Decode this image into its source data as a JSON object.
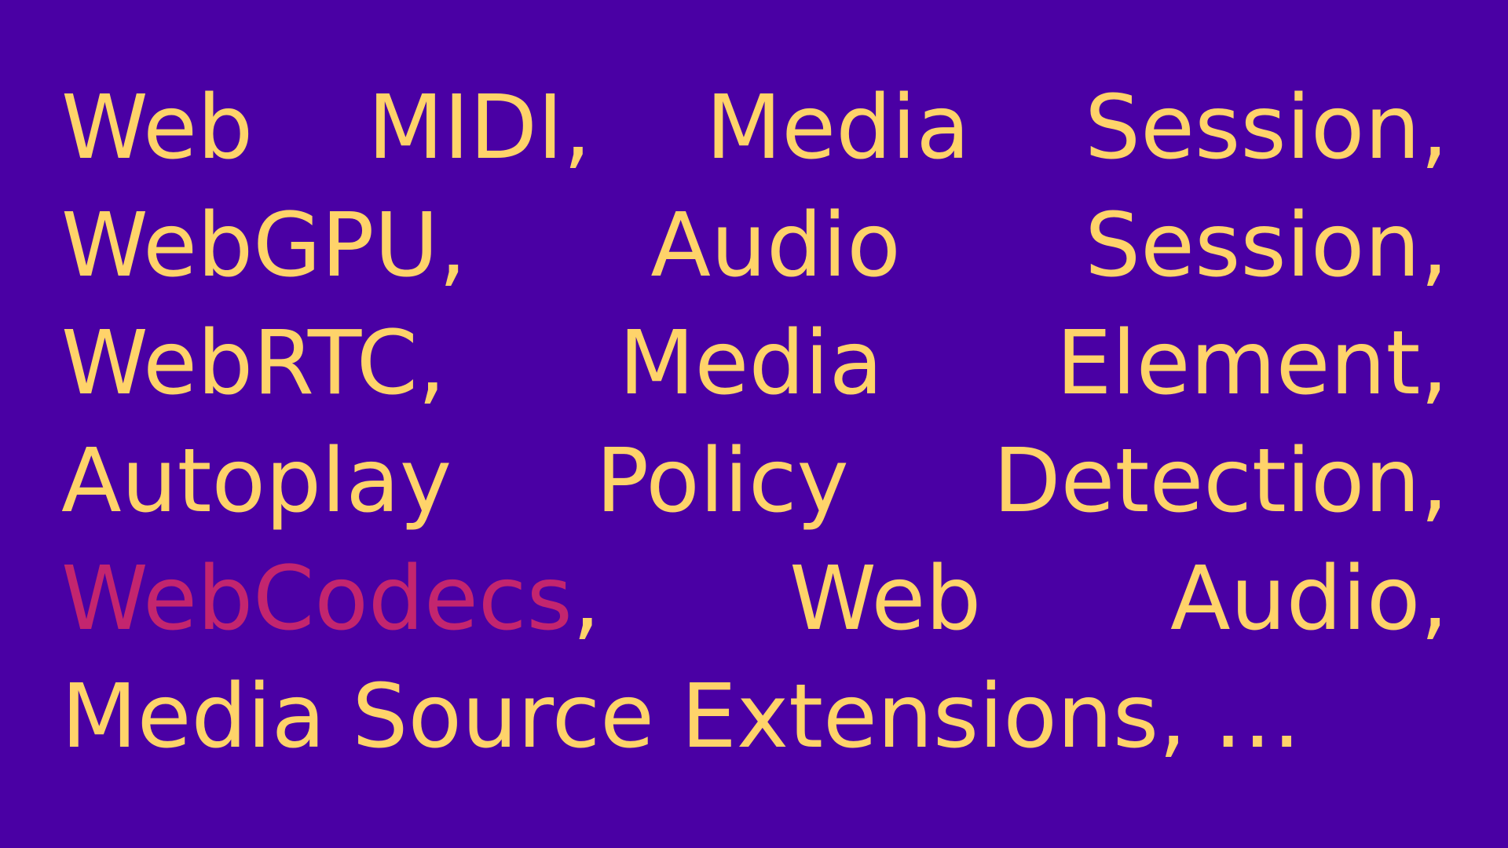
{
  "slide": {
    "background": "#4a00a4",
    "text_color": "#ffd36a",
    "highlight_color": "#c3256f",
    "lines": [
      [
        "Web",
        "MIDI,",
        "Media",
        "Session,"
      ],
      [
        "WebGPU,",
        "Audio",
        "Session,"
      ],
      [
        "WebRTC,",
        "Media",
        "Element,"
      ],
      [
        "Autoplay",
        "Policy",
        "Detection,"
      ],
      [
        {
          "text": "WebCodecs",
          "highlight": true,
          "suffix": ","
        },
        "Web",
        "Audio,"
      ],
      [
        "Media",
        "Source",
        "Extensions,",
        "…"
      ]
    ]
  }
}
